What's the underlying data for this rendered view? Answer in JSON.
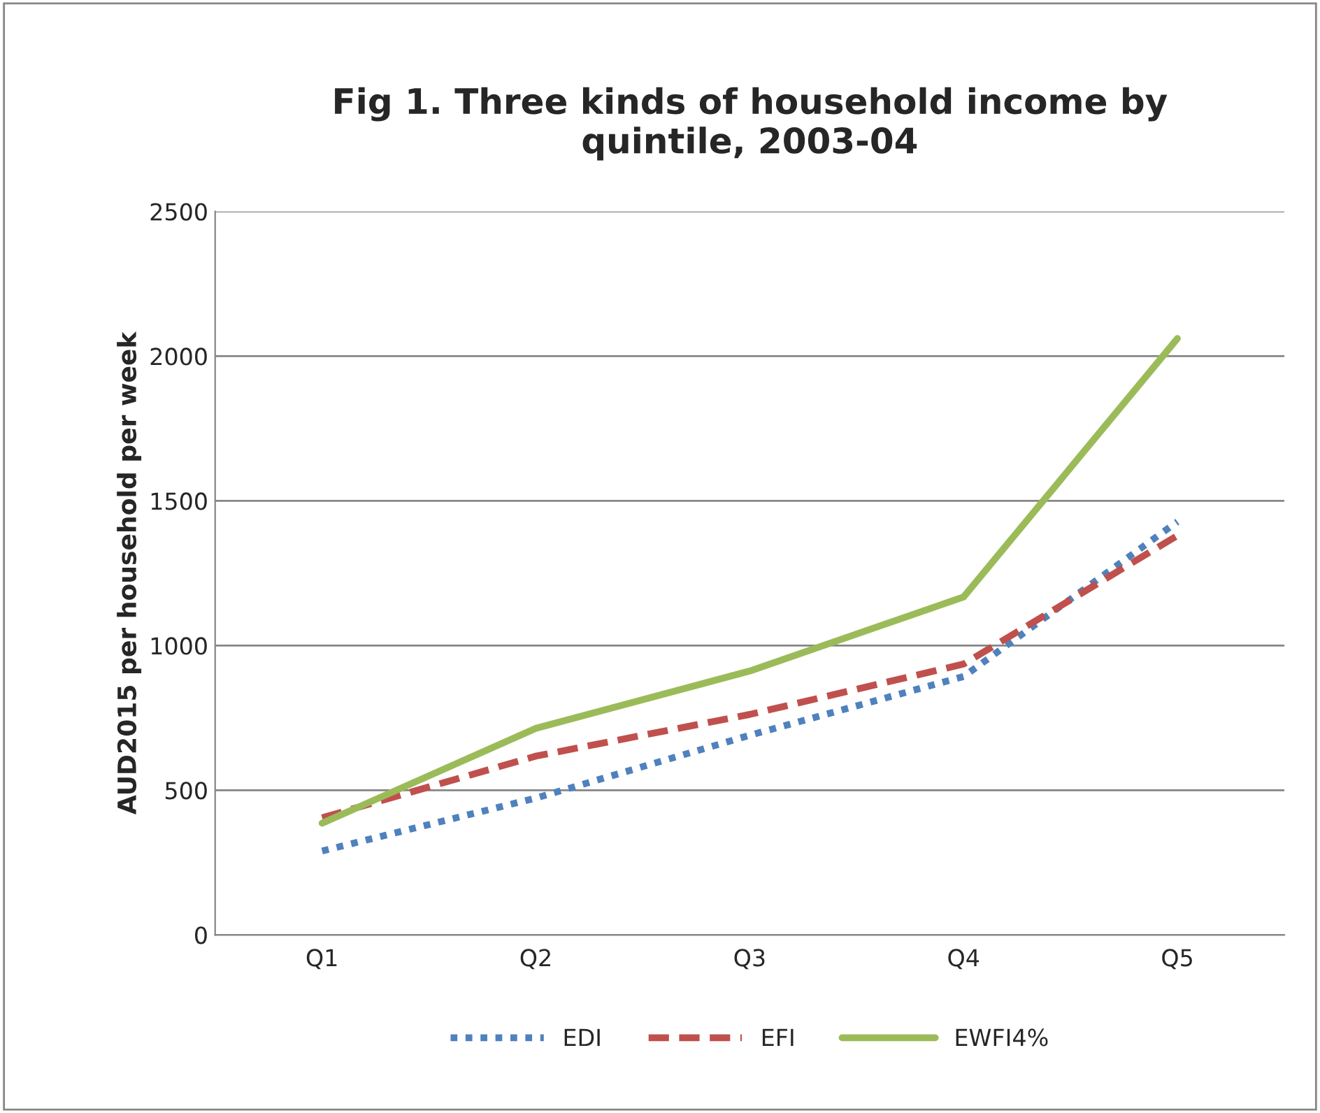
{
  "chart_data": {
    "type": "line",
    "title": "Fig 1. Three kinds of household income by\nquintile, 2003-04",
    "ylabel": "AUD2015 per household per week",
    "categories": [
      "Q1",
      "Q2",
      "Q3",
      "Q4",
      "Q5"
    ],
    "series": [
      {
        "name": "EDI",
        "color": "#4f81bd",
        "values": [
          290,
          473,
          690,
          893,
          1428
        ],
        "line_style": "dotted"
      },
      {
        "name": "EFI",
        "color": "#c0504d",
        "values": [
          405,
          618,
          762,
          936,
          1380
        ],
        "line_style": "dashed"
      },
      {
        "name": "EWFI4%",
        "color": "#9bbb59",
        "values": [
          386,
          714,
          912,
          1168,
          2061
        ],
        "line_style": "solid"
      }
    ],
    "ylim": [
      0,
      2500
    ],
    "yticks": [
      0,
      500,
      1000,
      1500,
      2000,
      2500
    ],
    "grid": "y",
    "legend": "bottom",
    "marker": "none"
  }
}
